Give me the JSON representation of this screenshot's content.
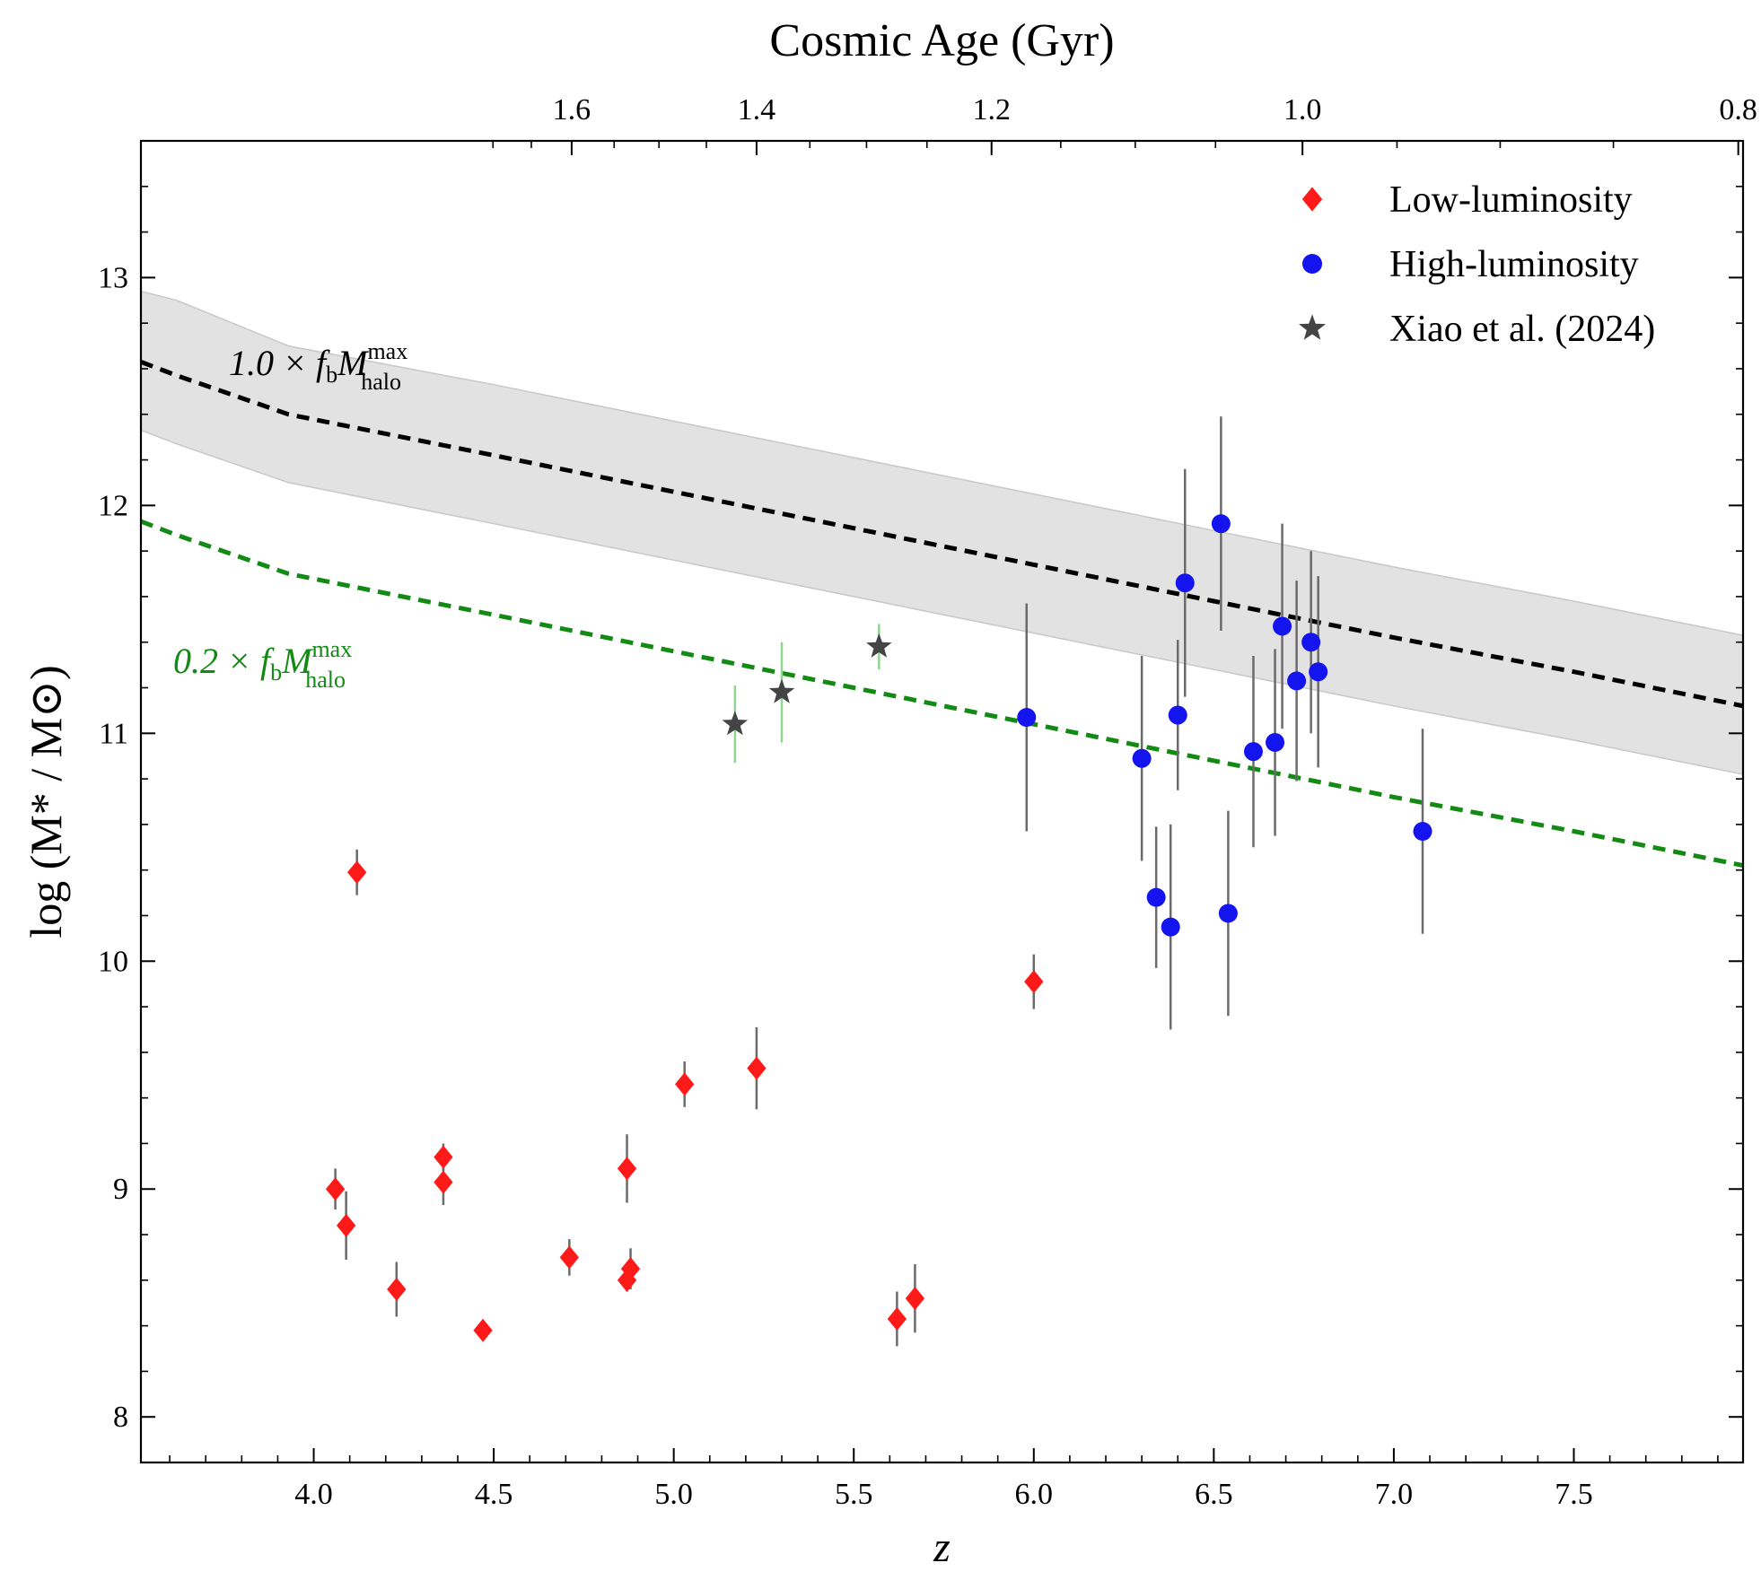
{
  "chart_data": {
    "type": "scatter",
    "title": "",
    "xlabel": "z",
    "ylabel": "log (M* / M⊙)",
    "top_axis_label": "Cosmic Age (Gyr)",
    "xlim": [
      3.52,
      7.97
    ],
    "ylim": [
      7.8,
      13.6
    ],
    "x_ticks": [
      "4.0",
      "4.5",
      "5.0",
      "5.5",
      "6.0",
      "6.5",
      "7.0",
      "7.5"
    ],
    "y_ticks": [
      "8",
      "9",
      "10",
      "11",
      "12",
      "13"
    ],
    "top_ticks": [
      {
        "label": "1.6",
        "age": 1.6
      },
      {
        "label": "1.4",
        "age": 1.4
      },
      {
        "label": "1.2",
        "age": 1.2
      },
      {
        "label": "1.0",
        "age": 1.0
      },
      {
        "label": "0.8",
        "age": 0.8
      }
    ],
    "grid": false,
    "legend_position": "top-right",
    "legend": [
      {
        "label": "Low-luminosity",
        "marker": "diamond",
        "color": "#ff1a1a"
      },
      {
        "label": "High-luminosity",
        "marker": "circle",
        "color": "#1414ee"
      },
      {
        "label": "Xiao et al. (2024)",
        "marker": "star",
        "color": "#444444"
      }
    ],
    "curves": [
      {
        "label_main": "1.0 × f",
        "label_sub": "b",
        "label_m": "M",
        "label_sup": "max",
        "label_sub2": "halo",
        "color": "#000000",
        "x": [
          3.52,
          3.62,
          3.93,
          4.5,
          5.0,
          5.5,
          6.0,
          6.5,
          7.0,
          7.5,
          7.97
        ],
        "y": [
          12.63,
          12.57,
          12.4,
          12.22,
          12.06,
          11.9,
          11.74,
          11.58,
          11.42,
          11.27,
          11.12
        ],
        "band_upper": [
          12.94,
          12.9,
          12.7,
          12.53,
          12.37,
          12.21,
          12.05,
          11.89,
          11.73,
          11.58,
          11.43
        ],
        "band_lower": [
          12.33,
          12.27,
          12.1,
          11.92,
          11.76,
          11.6,
          11.44,
          11.28,
          11.12,
          10.97,
          10.82
        ],
        "band_color": "#e2e2e2"
      },
      {
        "label_main": "0.2 × f",
        "label_sub": "b",
        "label_m": "M",
        "label_sup": "max",
        "label_sub2": "halo",
        "color": "#138a13",
        "x": [
          3.52,
          3.62,
          3.93,
          4.5,
          5.0,
          5.5,
          6.0,
          6.5,
          7.0,
          7.5,
          7.97
        ],
        "y": [
          11.93,
          11.87,
          11.7,
          11.52,
          11.36,
          11.2,
          11.04,
          10.88,
          10.72,
          10.57,
          10.42
        ]
      }
    ],
    "series": [
      {
        "name": "Low-luminosity",
        "marker": "diamond",
        "color": "#ff1a1a",
        "points": [
          {
            "x": 4.12,
            "y": 10.39,
            "err": 0.1
          },
          {
            "x": 4.06,
            "y": 9.0,
            "err": 0.09
          },
          {
            "x": 4.09,
            "y": 8.84,
            "err": 0.15
          },
          {
            "x": 4.23,
            "y": 8.56,
            "err": 0.12
          },
          {
            "x": 4.36,
            "y": 9.14,
            "err": 0.06
          },
          {
            "x": 4.36,
            "y": 9.03,
            "err": 0.1
          },
          {
            "x": 4.47,
            "y": 8.38,
            "err": 0.04
          },
          {
            "x": 4.71,
            "y": 8.7,
            "err": 0.08
          },
          {
            "x": 4.87,
            "y": 9.09,
            "err": 0.15
          },
          {
            "x": 4.88,
            "y": 8.65,
            "err": 0.09
          },
          {
            "x": 4.87,
            "y": 8.6,
            "err": 0.05
          },
          {
            "x": 5.03,
            "y": 9.46,
            "err": 0.1
          },
          {
            "x": 5.23,
            "y": 9.53,
            "err": 0.18
          },
          {
            "x": 5.62,
            "y": 8.43,
            "err": 0.12
          },
          {
            "x": 5.67,
            "y": 8.52,
            "err": 0.15
          },
          {
            "x": 6.0,
            "y": 9.91,
            "err": 0.12
          }
        ]
      },
      {
        "name": "High-luminosity",
        "marker": "circle",
        "color": "#1414ee",
        "points": [
          {
            "x": 5.98,
            "y": 11.07,
            "err": 0.5
          },
          {
            "x": 6.3,
            "y": 10.89,
            "err": 0.45
          },
          {
            "x": 6.34,
            "y": 10.28,
            "err": 0.31
          },
          {
            "x": 6.38,
            "y": 10.15,
            "err": 0.45
          },
          {
            "x": 6.4,
            "y": 11.08,
            "err": 0.33
          },
          {
            "x": 6.42,
            "y": 11.66,
            "err": 0.5
          },
          {
            "x": 6.52,
            "y": 11.92,
            "err": 0.47
          },
          {
            "x": 6.54,
            "y": 10.21,
            "err": 0.45
          },
          {
            "x": 6.61,
            "y": 10.92,
            "err": 0.42
          },
          {
            "x": 6.67,
            "y": 10.96,
            "err": 0.41
          },
          {
            "x": 6.69,
            "y": 11.47,
            "err": 0.45
          },
          {
            "x": 6.73,
            "y": 11.23,
            "err": 0.44
          },
          {
            "x": 6.77,
            "y": 11.4,
            "err": 0.4
          },
          {
            "x": 6.79,
            "y": 11.27,
            "err": 0.42
          },
          {
            "x": 7.08,
            "y": 10.57,
            "err": 0.45
          }
        ]
      },
      {
        "name": "Xiao et al. (2024)",
        "marker": "star",
        "color": "#444444",
        "error_color": "#90d690",
        "points": [
          {
            "x": 5.17,
            "y": 11.04,
            "err": 0.17
          },
          {
            "x": 5.3,
            "y": 11.18,
            "err": 0.22
          },
          {
            "x": 5.57,
            "y": 11.38,
            "err": 0.1
          }
        ]
      }
    ]
  }
}
